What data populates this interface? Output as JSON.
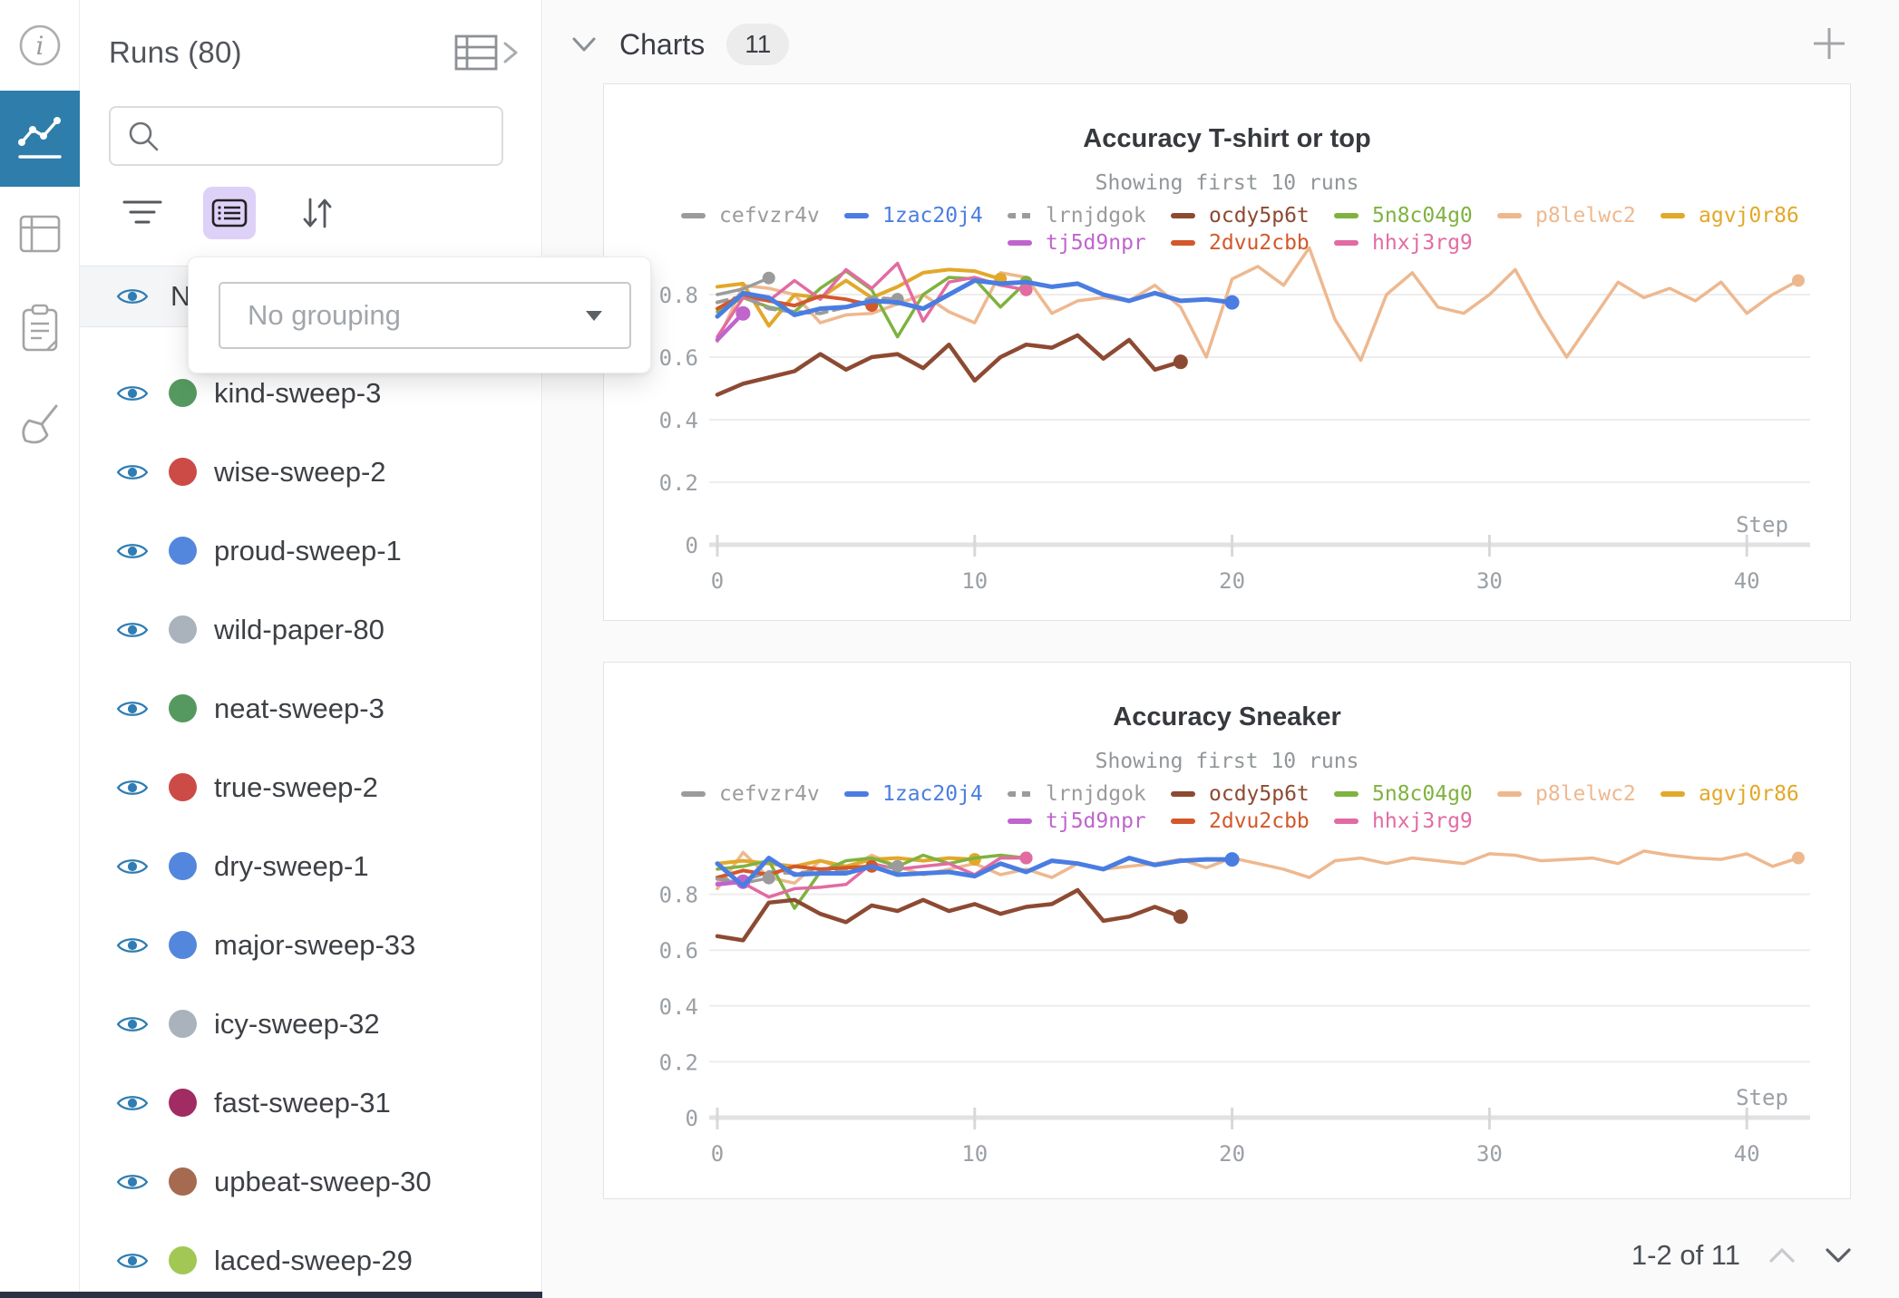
{
  "sidebar": {
    "items": [
      {
        "icon": "info-icon",
        "active": false
      },
      {
        "icon": "line-chart-icon",
        "active": true
      },
      {
        "icon": "table-icon",
        "active": false
      },
      {
        "icon": "notes-clipboard-icon",
        "active": false
      },
      {
        "icon": "broom-icon",
        "active": false
      }
    ]
  },
  "runs_panel": {
    "title": "Runs (80)",
    "search_placeholder": "",
    "toolbar_icons": [
      "filter-icon",
      "list-view-icon",
      "sort-icon"
    ],
    "header_row_partial": "Na",
    "grouping": {
      "value": "No grouping"
    },
    "runs": [
      {
        "label": "kind-sweep-3",
        "color": "#569960"
      },
      {
        "label": "wise-sweep-2",
        "color": "#cc4b47"
      },
      {
        "label": "proud-sweep-1",
        "color": "#5387dd"
      },
      {
        "label": "wild-paper-80",
        "color": "#aab2bb"
      },
      {
        "label": "neat-sweep-3",
        "color": "#569960"
      },
      {
        "label": "true-sweep-2",
        "color": "#cc4b47"
      },
      {
        "label": "dry-sweep-1",
        "color": "#5387dd"
      },
      {
        "label": "major-sweep-33",
        "color": "#5387dd"
      },
      {
        "label": "icy-sweep-32",
        "color": "#aab2bb"
      },
      {
        "label": "fast-sweep-31",
        "color": "#a02c63"
      },
      {
        "label": "upbeat-sweep-30",
        "color": "#a56a50"
      },
      {
        "label": "laced-sweep-29",
        "color": "#a2c754"
      }
    ]
  },
  "charts_section": {
    "title": "Charts",
    "count_badge": "11",
    "pagination": {
      "label": "1-2 of 11"
    }
  },
  "chart_data": [
    {
      "type": "line",
      "title": "Accuracy T-shirt or top",
      "subtitle": "Showing first 10 runs",
      "xlabel": "Step",
      "ylabel": "",
      "xticks": [
        0,
        10,
        20,
        30,
        40
      ],
      "yticks": [
        0,
        0.2,
        0.4,
        0.6,
        0.8
      ],
      "xlim": [
        0,
        43.5
      ],
      "ylim": [
        0,
        1.05
      ],
      "grid": true,
      "legend_position": "top",
      "series": [
        {
          "name": "cefvzr4v",
          "color": "#9b9b9b",
          "dash": false,
          "z": 8,
          "width": 3.5,
          "legend": [
            1,
            1
          ],
          "x": [
            0,
            1,
            2
          ],
          "y": [
            0.8,
            0.818,
            0.853
          ]
        },
        {
          "name": "1zac20j4",
          "color": "#4a7de2",
          "dash": false,
          "z": 10,
          "width": 5,
          "legend": [
            1,
            2
          ],
          "x": [
            0,
            1,
            2,
            3,
            4,
            5,
            6,
            7,
            8,
            9,
            10,
            11,
            12,
            13,
            14,
            15,
            16,
            17,
            18,
            19,
            20
          ],
          "y": [
            0.73,
            0.805,
            0.79,
            0.735,
            0.755,
            0.76,
            0.78,
            0.775,
            0.755,
            0.8,
            0.845,
            0.835,
            0.84,
            0.825,
            0.835,
            0.8,
            0.78,
            0.805,
            0.78,
            0.785,
            0.775
          ]
        },
        {
          "name": "lrnjdgok",
          "color": "#9b9b9b",
          "dash": true,
          "z": 6,
          "width": 4,
          "legend": [
            1,
            3
          ],
          "x": [
            0,
            1,
            2,
            3,
            4,
            5,
            6,
            7
          ],
          "y": [
            0.775,
            0.795,
            0.755,
            0.745,
            0.74,
            0.76,
            0.79,
            0.785
          ]
        },
        {
          "name": "ocdy5p6t",
          "color": "#8d4a32",
          "dash": false,
          "z": 5,
          "width": 4.5,
          "legend": [
            1,
            4
          ],
          "x": [
            0,
            1,
            2,
            3,
            4,
            5,
            6,
            7,
            8,
            9,
            10,
            11,
            12,
            13,
            14,
            15,
            16,
            17,
            18
          ],
          "y": [
            0.48,
            0.515,
            0.535,
            0.555,
            0.61,
            0.56,
            0.6,
            0.61,
            0.565,
            0.64,
            0.525,
            0.6,
            0.64,
            0.63,
            0.67,
            0.595,
            0.655,
            0.56,
            0.585
          ]
        },
        {
          "name": "5n8c04g0",
          "color": "#7fb23f",
          "dash": false,
          "z": 3,
          "width": 3.5,
          "legend": [
            1,
            5
          ],
          "x": [
            0,
            1,
            2,
            3,
            4,
            5,
            6,
            7,
            8,
            9,
            10,
            11,
            12
          ],
          "y": [
            0.745,
            0.79,
            0.76,
            0.745,
            0.82,
            0.875,
            0.815,
            0.665,
            0.8,
            0.855,
            0.85,
            0.76,
            0.84
          ]
        },
        {
          "name": "p8lelwc2",
          "color": "#eeb88f",
          "dash": false,
          "z": 1,
          "width": 3.5,
          "legend": [
            1,
            6
          ],
          "x": [
            0,
            1,
            2,
            3,
            4,
            5,
            6,
            7,
            8,
            9,
            10,
            11,
            12,
            13,
            14,
            15,
            16,
            17,
            18,
            19,
            20,
            21,
            22,
            23,
            24,
            25,
            26,
            27,
            28,
            29,
            30,
            31,
            32,
            33,
            34,
            35,
            36,
            37,
            38,
            39,
            40,
            41,
            42
          ],
          "y": [
            0.65,
            0.83,
            0.82,
            0.8,
            0.71,
            0.735,
            0.74,
            0.77,
            0.8,
            0.745,
            0.71,
            0.87,
            0.855,
            0.74,
            0.78,
            0.79,
            0.78,
            0.83,
            0.76,
            0.6,
            0.85,
            0.89,
            0.83,
            0.95,
            0.72,
            0.59,
            0.8,
            0.87,
            0.76,
            0.74,
            0.8,
            0.88,
            0.73,
            0.6,
            0.72,
            0.84,
            0.79,
            0.82,
            0.78,
            0.84,
            0.74,
            0.8,
            0.845
          ]
        },
        {
          "name": "agvj0r86",
          "color": "#e2a829",
          "dash": false,
          "z": 2,
          "width": 4,
          "legend": [
            1,
            7
          ],
          "x": [
            0,
            1,
            2,
            3,
            4,
            5,
            6,
            7,
            8,
            9,
            10,
            11
          ],
          "y": [
            0.825,
            0.835,
            0.7,
            0.8,
            0.79,
            0.845,
            0.79,
            0.825,
            0.87,
            0.88,
            0.875,
            0.85
          ]
        },
        {
          "name": "tj5d9npr",
          "color": "#c064ce",
          "dash": false,
          "z": 9,
          "width": 4.5,
          "legend": [
            2,
            3
          ],
          "x": [
            0,
            1
          ],
          "y": [
            0.655,
            0.74
          ]
        },
        {
          "name": "2dvu2cbb",
          "color": "#d3582b",
          "dash": false,
          "z": 7,
          "width": 4,
          "legend": [
            2,
            4
          ],
          "x": [
            0,
            1,
            2,
            3,
            4,
            5,
            6
          ],
          "y": [
            0.755,
            0.8,
            0.78,
            0.765,
            0.795,
            0.785,
            0.765
          ]
        },
        {
          "name": "hhxj3rg9",
          "color": "#e26ba2",
          "dash": false,
          "z": 4,
          "width": 3.5,
          "legend": [
            2,
            5
          ],
          "x": [
            0,
            1,
            2,
            3,
            4,
            5,
            6,
            7,
            8,
            9,
            10,
            11,
            12
          ],
          "y": [
            0.665,
            0.79,
            0.78,
            0.845,
            0.785,
            0.88,
            0.82,
            0.9,
            0.715,
            0.84,
            0.855,
            0.83,
            0.815
          ]
        }
      ]
    },
    {
      "type": "line",
      "title": "Accuracy Sneaker",
      "subtitle": "Showing first 10 runs",
      "xlabel": "Step",
      "ylabel": "",
      "xticks": [
        0,
        10,
        20,
        30,
        40
      ],
      "yticks": [
        0,
        0.2,
        0.4,
        0.6,
        0.8
      ],
      "xlim": [
        0,
        43.5
      ],
      "ylim": [
        0,
        1.17
      ],
      "grid": true,
      "legend_position": "top",
      "series": [
        {
          "name": "cefvzr4v",
          "color": "#9b9b9b",
          "dash": false,
          "z": 8,
          "width": 3.5,
          "legend": [
            1,
            1
          ],
          "x": [
            0,
            1,
            2
          ],
          "y": [
            0.855,
            0.84,
            0.858
          ]
        },
        {
          "name": "1zac20j4",
          "color": "#4a7de2",
          "dash": false,
          "z": 10,
          "width": 5,
          "legend": [
            1,
            2
          ],
          "x": [
            0,
            1,
            2,
            3,
            4,
            5,
            6,
            7,
            8,
            9,
            10,
            11,
            12,
            13,
            14,
            15,
            16,
            17,
            18,
            19,
            20
          ],
          "y": [
            0.91,
            0.83,
            0.93,
            0.87,
            0.875,
            0.875,
            0.9,
            0.87,
            0.875,
            0.88,
            0.865,
            0.91,
            0.88,
            0.92,
            0.91,
            0.89,
            0.93,
            0.905,
            0.92,
            0.925,
            0.925
          ]
        },
        {
          "name": "lrnjdgok",
          "color": "#9b9b9b",
          "dash": true,
          "z": 6,
          "width": 4,
          "legend": [
            1,
            3
          ],
          "x": [
            0,
            1,
            2,
            3,
            4,
            5,
            6,
            7
          ],
          "y": [
            0.855,
            0.85,
            0.88,
            0.875,
            0.885,
            0.89,
            0.895,
            0.9
          ]
        },
        {
          "name": "ocdy5p6t",
          "color": "#8d4a32",
          "dash": false,
          "z": 5,
          "width": 4.5,
          "legend": [
            1,
            4
          ],
          "x": [
            0,
            1,
            2,
            3,
            4,
            5,
            6,
            7,
            8,
            9,
            10,
            11,
            12,
            13,
            14,
            15,
            16,
            17,
            18
          ],
          "y": [
            0.65,
            0.635,
            0.77,
            0.78,
            0.73,
            0.7,
            0.76,
            0.74,
            0.78,
            0.74,
            0.765,
            0.73,
            0.755,
            0.765,
            0.815,
            0.705,
            0.72,
            0.755,
            0.72
          ]
        },
        {
          "name": "5n8c04g0",
          "color": "#7fb23f",
          "dash": false,
          "z": 3,
          "width": 3.5,
          "legend": [
            1,
            5
          ],
          "x": [
            0,
            1,
            2,
            3,
            4,
            5,
            6,
            7,
            8,
            9,
            10,
            11,
            12
          ],
          "y": [
            0.89,
            0.9,
            0.92,
            0.75,
            0.88,
            0.92,
            0.93,
            0.9,
            0.94,
            0.91,
            0.93,
            0.94,
            0.93
          ]
        },
        {
          "name": "p8lelwc2",
          "color": "#eeb88f",
          "dash": false,
          "z": 1,
          "width": 3.5,
          "legend": [
            1,
            6
          ],
          "x": [
            0,
            1,
            2,
            3,
            4,
            5,
            6,
            7,
            8,
            9,
            10,
            11,
            12,
            13,
            14,
            15,
            16,
            17,
            18,
            19,
            20,
            21,
            22,
            23,
            24,
            25,
            26,
            27,
            28,
            29,
            30,
            31,
            32,
            33,
            34,
            35,
            36,
            37,
            38,
            39,
            40,
            41,
            42
          ],
          "y": [
            0.82,
            0.95,
            0.86,
            0.84,
            0.92,
            0.89,
            0.94,
            0.9,
            0.87,
            0.89,
            0.91,
            0.87,
            0.89,
            0.86,
            0.91,
            0.89,
            0.9,
            0.91,
            0.925,
            0.895,
            0.93,
            0.91,
            0.89,
            0.86,
            0.92,
            0.93,
            0.91,
            0.93,
            0.92,
            0.91,
            0.945,
            0.94,
            0.92,
            0.925,
            0.93,
            0.91,
            0.955,
            0.94,
            0.93,
            0.925,
            0.945,
            0.9,
            0.93
          ]
        },
        {
          "name": "agvj0r86",
          "color": "#e2a829",
          "dash": false,
          "z": 2,
          "width": 4,
          "legend": [
            1,
            7
          ],
          "x": [
            0,
            1,
            2,
            3,
            4,
            5,
            6,
            7,
            8,
            9,
            10
          ],
          "y": [
            0.91,
            0.92,
            0.91,
            0.9,
            0.92,
            0.9,
            0.925,
            0.93,
            0.92,
            0.93,
            0.925
          ]
        },
        {
          "name": "tj5d9npr",
          "color": "#c064ce",
          "dash": false,
          "z": 9,
          "width": 4.5,
          "legend": [
            2,
            3
          ],
          "x": [
            0,
            1
          ],
          "y": [
            0.835,
            0.845
          ]
        },
        {
          "name": "2dvu2cbb",
          "color": "#d3582b",
          "dash": false,
          "z": 7,
          "width": 4,
          "legend": [
            2,
            4
          ],
          "x": [
            0,
            1,
            2,
            3,
            4,
            5,
            6
          ],
          "y": [
            0.86,
            0.885,
            0.87,
            0.9,
            0.89,
            0.895,
            0.9
          ]
        },
        {
          "name": "hhxj3rg9",
          "color": "#e26ba2",
          "dash": false,
          "z": 4,
          "width": 3.5,
          "legend": [
            2,
            5
          ],
          "x": [
            0,
            1,
            2,
            3,
            4,
            5,
            6,
            7,
            8,
            9,
            10,
            11,
            12
          ],
          "y": [
            0.84,
            0.84,
            0.79,
            0.82,
            0.825,
            0.835,
            0.91,
            0.89,
            0.9,
            0.91,
            0.87,
            0.93,
            0.93
          ]
        }
      ]
    }
  ]
}
